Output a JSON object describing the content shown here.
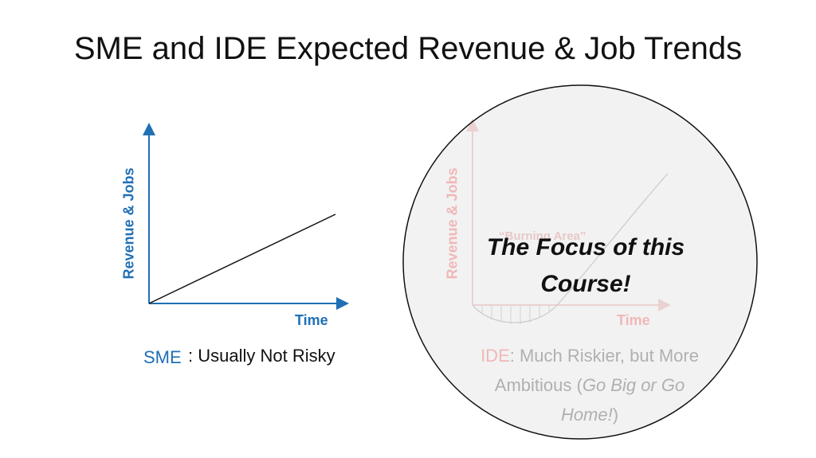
{
  "title": "SME and IDE Expected Revenue & Job Trends",
  "sme": {
    "y_label": "Revenue & Jobs",
    "x_label": "Time",
    "name": "SME",
    "description": ": Usually Not Risky"
  },
  "ide": {
    "y_label": "Revenue & Jobs",
    "x_label": "Time",
    "annotation": "“Burning Area”",
    "name": "IDE",
    "description": ": Much Riskier, but More Ambitious (",
    "emphasis": "Go Big or Go Home!",
    "closing": ")"
  },
  "callout": "The Focus of this Course!"
}
